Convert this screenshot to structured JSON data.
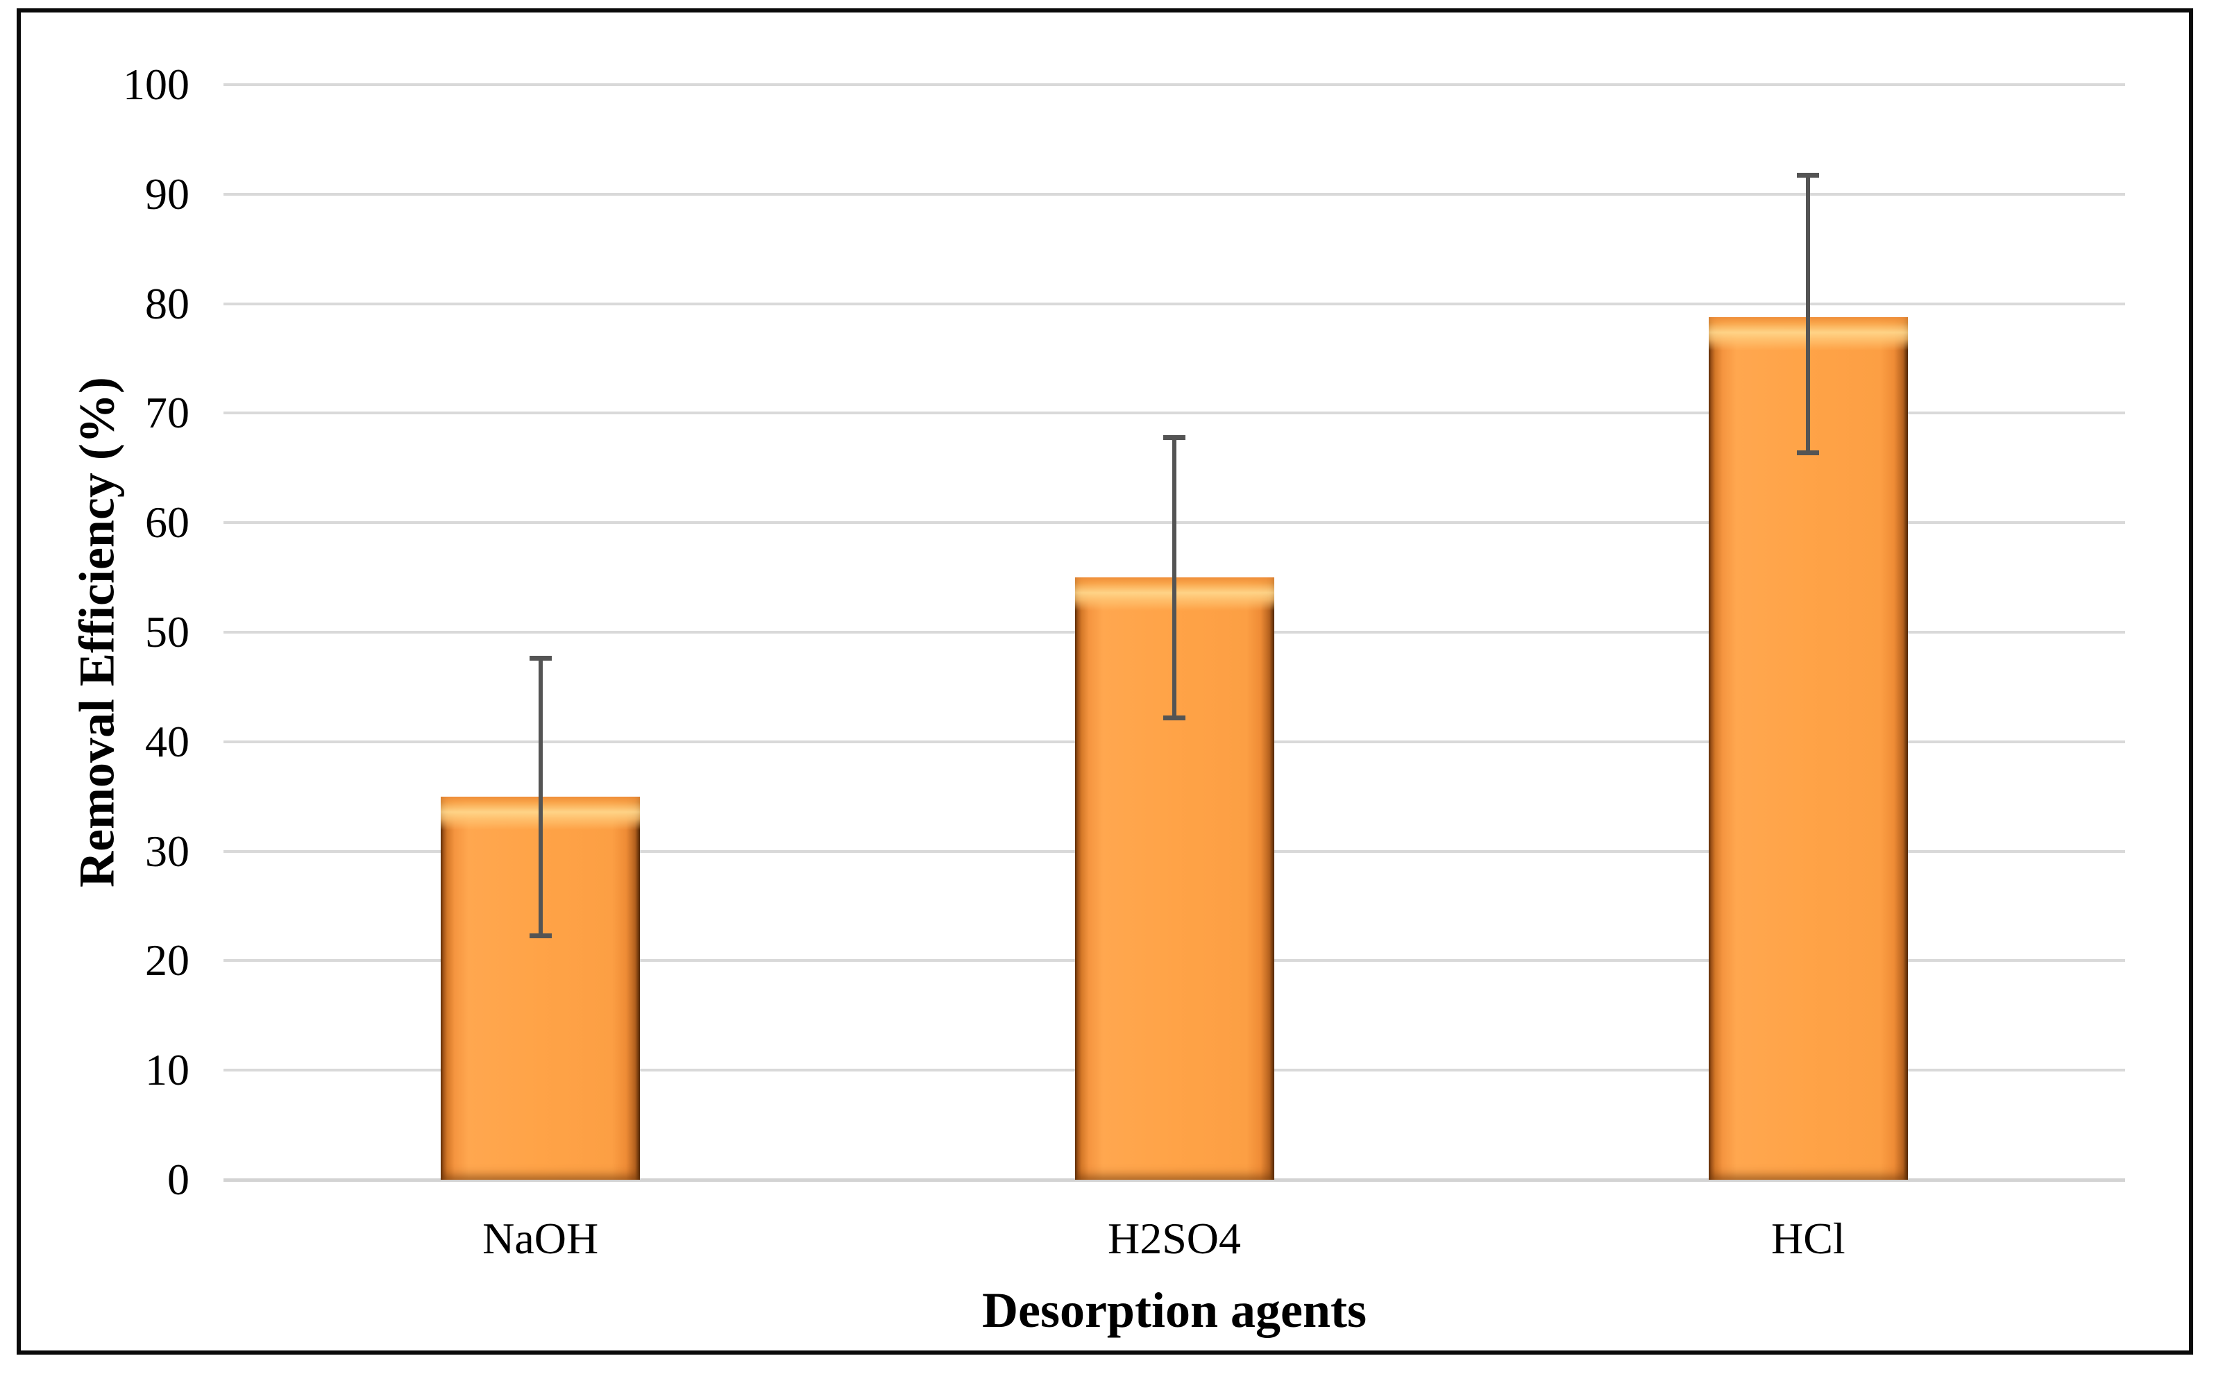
{
  "chart_data": {
    "type": "bar",
    "title": "",
    "categories": [
      "NaOH",
      "H2SO4",
      "HCl"
    ],
    "values": [
      35,
      55,
      78.8
    ],
    "error_bars": {
      "lower": [
        22.3,
        42.2,
        66.4
      ],
      "upper": [
        47.6,
        67.8,
        91.7
      ]
    },
    "xlabel": "Desorption agents",
    "ylabel": "Removal Efficiency (%)",
    "ylim": [
      0,
      100
    ],
    "ytick_step": 10,
    "ytick_labels": [
      "0",
      "10",
      "20",
      "30",
      "40",
      "50",
      "60",
      "70",
      "80",
      "90",
      "100"
    ],
    "grid": true,
    "legend": "none",
    "colors": {
      "bar_fill": "#FFA347",
      "bar_edge_dark": "#5E2D06",
      "bar_highlight": "#FFD68A",
      "error_bar": "#545454",
      "gridline": "#D9D9D9",
      "axis_line": "#D3D3D3",
      "text": "#000000",
      "border": "#0A0A0A",
      "background": "#FFFFFF"
    }
  }
}
